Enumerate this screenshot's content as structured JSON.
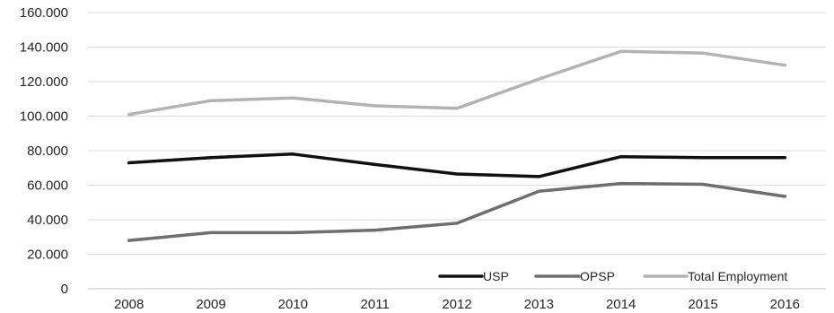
{
  "chart_data": {
    "type": "line",
    "title": "",
    "xlabel": "",
    "ylabel": "",
    "categories": [
      "2008",
      "2009",
      "2010",
      "2011",
      "2012",
      "2013",
      "2014",
      "2015",
      "2016"
    ],
    "ylim": [
      0,
      160000
    ],
    "yticks": [
      0,
      20000,
      40000,
      60000,
      80000,
      100000,
      120000,
      140000,
      160000
    ],
    "ytick_labels": [
      "0",
      "20.000",
      "40.000",
      "60.000",
      "80.000",
      "100.000",
      "120.000",
      "140.000",
      "160.000"
    ],
    "grid": true,
    "legend_position": "bottom-right",
    "series": [
      {
        "name": "USP",
        "color": "#111111",
        "values": [
          73000,
          76000,
          78000,
          72000,
          66500,
          65000,
          76500,
          76000,
          76000
        ]
      },
      {
        "name": "OPSP",
        "color": "#6e6e6e",
        "values": [
          28000,
          32500,
          32500,
          34000,
          38000,
          56500,
          61000,
          60500,
          53500
        ]
      },
      {
        "name": "Total Employment",
        "color": "#b3b3b3",
        "values": [
          101000,
          109000,
          110500,
          106000,
          104500,
          121500,
          137500,
          136500,
          129500
        ]
      }
    ]
  }
}
